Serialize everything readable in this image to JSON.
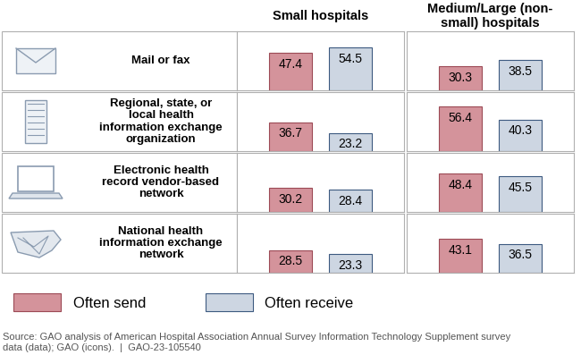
{
  "chart_data": {
    "type": "bar",
    "categories": [
      "Mail or fax",
      "Regional, state, or local health information exchange organization",
      "Electronic health record vendor-based network",
      "National health information exchange network"
    ],
    "panels": [
      {
        "title": "Small hospitals",
        "series": [
          {
            "name": "Often send",
            "color": "#d4939b",
            "values": [
              47.4,
              36.7,
              30.2,
              28.5
            ]
          },
          {
            "name": "Often receive",
            "color": "#cdd6e2",
            "values": [
              54.5,
              23.2,
              28.4,
              23.3
            ]
          }
        ]
      },
      {
        "title": "Medium/Large (non-small) hospitals",
        "series": [
          {
            "name": "Often send",
            "color": "#d4939b",
            "values": [
              30.3,
              56.4,
              48.4,
              43.1
            ]
          },
          {
            "name": "Often receive",
            "color": "#cdd6e2",
            "values": [
              38.5,
              40.3,
              45.5,
              36.5
            ]
          }
        ]
      }
    ],
    "ylim": [
      0,
      75
    ],
    "data_labels": true,
    "tick_labels": false,
    "legend": "lower left",
    "source": "Source: GAO analysis of American Hospital Association Annual Survey Information Technology Supplement survey data (data); GAO (icons).  |  GAO-23-105540"
  }
}
